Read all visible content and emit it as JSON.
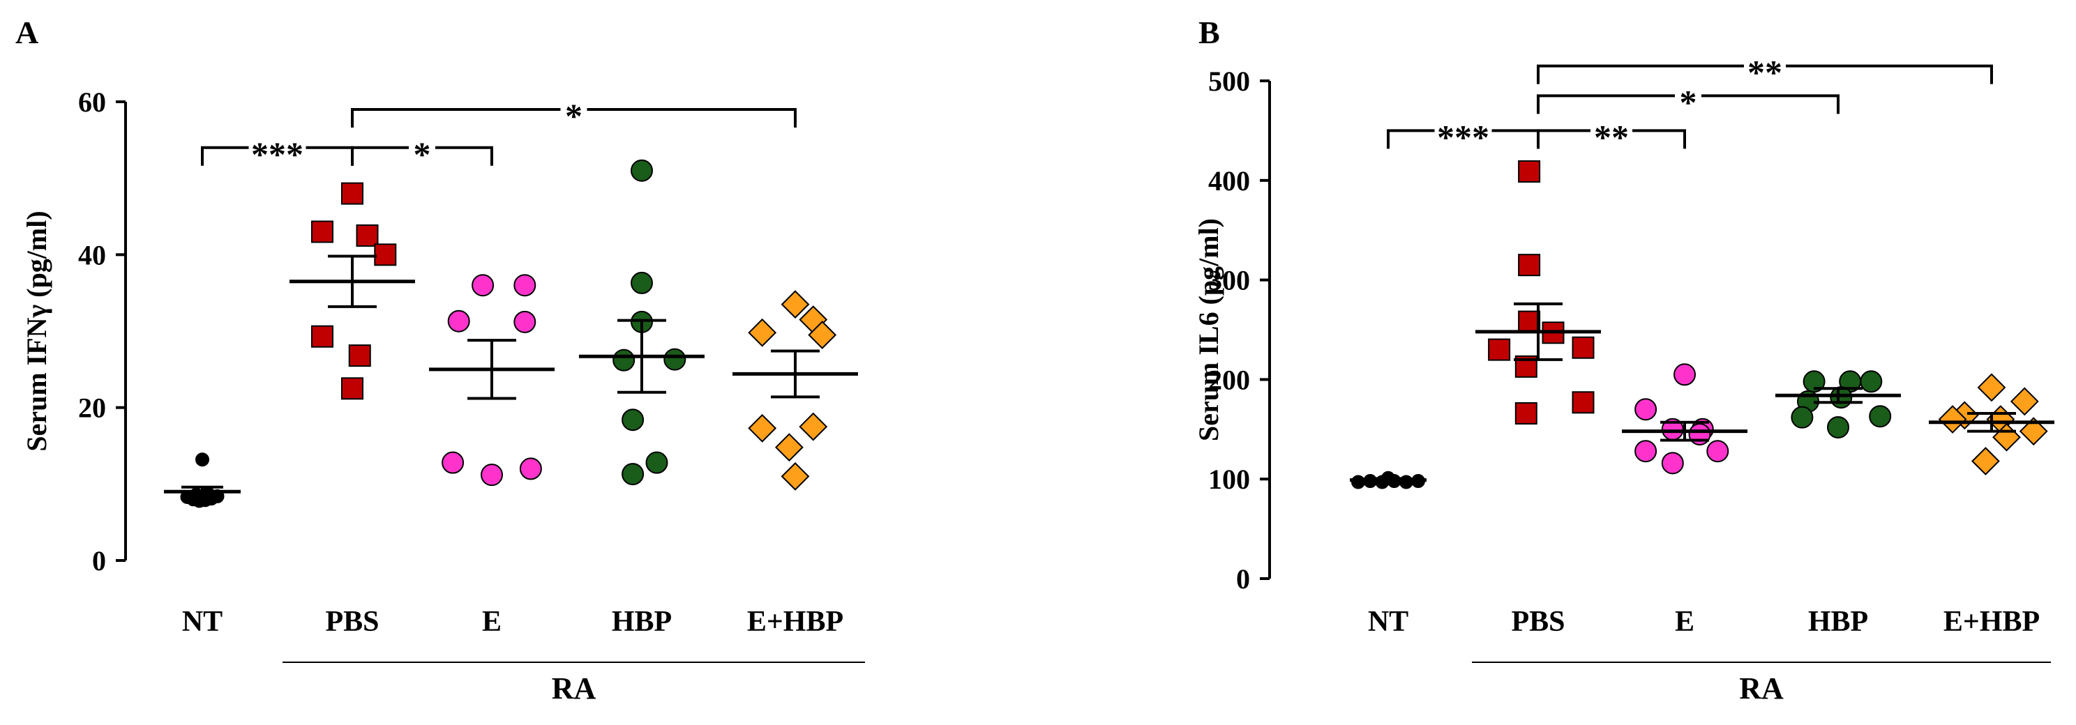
{
  "chart_data": [
    {
      "panel": "A",
      "type": "scatter",
      "ylabel": "Serum IFNγ (pg/ml)",
      "ylim": [
        0,
        60
      ],
      "yticks": [
        0,
        20,
        40,
        60
      ],
      "categories": [
        "NT",
        "PBS",
        "E",
        "HBP",
        "E+HBP"
      ],
      "group_label": "RA",
      "group_members": [
        "PBS",
        "E",
        "HBP",
        "E+HBP"
      ],
      "series": [
        {
          "category": "NT",
          "marker": "circle",
          "color": "#000000",
          "points": [
            [
              0,
              13.2
            ],
            [
              -0.1,
              8.3
            ],
            [
              -0.06,
              8.0
            ],
            [
              -0.02,
              7.8
            ],
            [
              0.02,
              7.9
            ],
            [
              0.06,
              8.1
            ],
            [
              0.1,
              8.4
            ],
            [
              -0.04,
              8.6
            ],
            [
              0.04,
              8.7
            ]
          ],
          "mean": 9.0,
          "sem": 0.6
        },
        {
          "category": "PBS",
          "marker": "square",
          "color": "#c00000",
          "points": [
            [
              0,
              48.0
            ],
            [
              -0.2,
              43.0
            ],
            [
              0.1,
              42.5
            ],
            [
              0.22,
              40.0
            ],
            [
              -0.2,
              29.3
            ],
            [
              0.05,
              26.8
            ],
            [
              0,
              22.5
            ]
          ],
          "mean": 36.5,
          "sem": 3.3
        },
        {
          "category": "E",
          "marker": "circle",
          "color": "#ff33cc",
          "points": [
            [
              -0.06,
              36.0
            ],
            [
              0.22,
              36.0
            ],
            [
              -0.22,
              31.3
            ],
            [
              0.22,
              31.2
            ],
            [
              -0.26,
              12.8
            ],
            [
              0.26,
              12.0
            ],
            [
              0,
              11.2
            ]
          ],
          "mean": 25.0,
          "sem": 3.8
        },
        {
          "category": "HBP",
          "marker": "circle",
          "color": "#1a5c1a",
          "points": [
            [
              0,
              51.0
            ],
            [
              0,
              36.3
            ],
            [
              0,
              31.2
            ],
            [
              -0.12,
              26.2
            ],
            [
              0.22,
              26.3
            ],
            [
              -0.06,
              18.4
            ],
            [
              0.1,
              12.8
            ],
            [
              -0.06,
              11.3
            ]
          ],
          "mean": 26.7,
          "sem": 4.7
        },
        {
          "category": "E+HBP",
          "marker": "diamond",
          "color": "#ff9f1a",
          "points": [
            [
              0,
              33.5
            ],
            [
              0.12,
              31.5
            ],
            [
              -0.22,
              29.8
            ],
            [
              0.18,
              29.5
            ],
            [
              -0.22,
              17.3
            ],
            [
              0.12,
              17.5
            ],
            [
              -0.04,
              14.8
            ],
            [
              0,
              11.0
            ]
          ],
          "mean": 24.4,
          "sem": 3.0
        }
      ],
      "significance": [
        {
          "from": "NT",
          "to": "PBS",
          "label": "***",
          "y": 54
        },
        {
          "from": "PBS",
          "to": "E",
          "label": "*",
          "y": 54
        },
        {
          "from": "PBS",
          "to": "E+HBP",
          "label": "*",
          "y": 59
        }
      ]
    },
    {
      "panel": "B",
      "type": "scatter",
      "ylabel": "Serum IL6 (pg/ml)",
      "ylim": [
        0,
        500
      ],
      "yticks": [
        0,
        100,
        200,
        300,
        400,
        500
      ],
      "categories": [
        "NT",
        "PBS",
        "E",
        "HBP",
        "E+HBP"
      ],
      "group_label": "RA",
      "group_members": [
        "PBS",
        "E",
        "HBP",
        "E+HBP"
      ],
      "series": [
        {
          "category": "NT",
          "marker": "circle",
          "color": "#000000",
          "points": [
            [
              -0.2,
              97
            ],
            [
              -0.12,
              98
            ],
            [
              -0.04,
              97
            ],
            [
              0.04,
              98
            ],
            [
              0.12,
              97
            ],
            [
              0.2,
              98
            ],
            [
              0,
              101
            ]
          ],
          "mean": 99,
          "sem": 1.5
        },
        {
          "category": "PBS",
          "marker": "square",
          "color": "#c00000",
          "points": [
            [
              -0.06,
              409
            ],
            [
              -0.06,
              315
            ],
            [
              -0.06,
              258
            ],
            [
              0.1,
              247
            ],
            [
              -0.26,
              230
            ],
            [
              0.3,
              232
            ],
            [
              -0.08,
              213
            ],
            [
              0.3,
              177
            ],
            [
              -0.08,
              166
            ]
          ],
          "mean": 248,
          "sem": 28
        },
        {
          "category": "E",
          "marker": "circle",
          "color": "#ff33cc",
          "points": [
            [
              0,
              205
            ],
            [
              -0.26,
              170
            ],
            [
              0.12,
              150
            ],
            [
              -0.08,
              150
            ],
            [
              0.1,
              145
            ],
            [
              -0.26,
              128
            ],
            [
              0.22,
              128
            ],
            [
              -0.08,
              116
            ]
          ],
          "mean": 148,
          "sem": 9
        },
        {
          "category": "HBP",
          "marker": "circle",
          "color": "#1a5c1a",
          "points": [
            [
              -0.16,
              198
            ],
            [
              0.08,
              198
            ],
            [
              0.22,
              198
            ],
            [
              -0.2,
              178
            ],
            [
              0.02,
              182
            ],
            [
              0.28,
              163
            ],
            [
              -0.24,
              162
            ],
            [
              0,
              152
            ]
          ],
          "mean": 184,
          "sem": 7
        },
        {
          "category": "E+HBP",
          "marker": "diamond",
          "color": "#ff9f1a",
          "points": [
            [
              0,
              192
            ],
            [
              0.22,
              178
            ],
            [
              -0.18,
              164
            ],
            [
              0.06,
              160
            ],
            [
              0.28,
              148
            ],
            [
              -0.26,
              160
            ],
            [
              0.1,
              142
            ],
            [
              -0.04,
              118
            ]
          ],
          "mean": 157,
          "sem": 9
        }
      ],
      "significance": [
        {
          "from": "NT",
          "to": "PBS",
          "label": "***",
          "y": 450
        },
        {
          "from": "PBS",
          "to": "E",
          "label": "**",
          "y": 450
        },
        {
          "from": "PBS",
          "to": "HBP",
          "label": "*",
          "y": 485
        },
        {
          "from": "PBS",
          "to": "E+HBP",
          "label": "**",
          "y": 515
        }
      ]
    }
  ]
}
